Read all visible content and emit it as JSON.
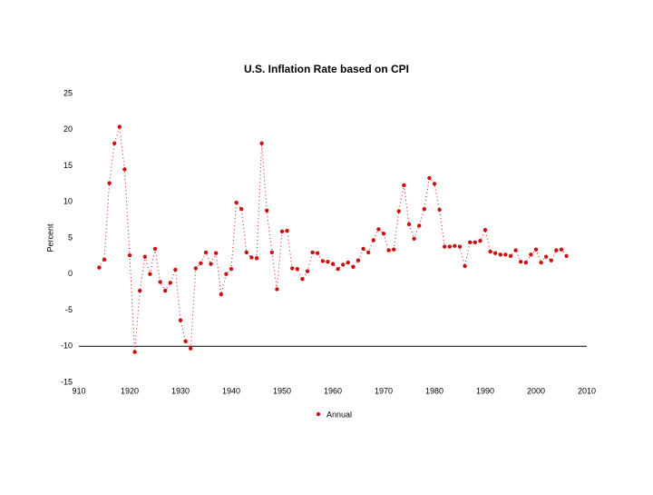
{
  "chart_data": {
    "type": "line",
    "title": "U.S. Inflation Rate based on CPI",
    "y_label": "Percent",
    "x": [
      1914,
      1915,
      1916,
      1917,
      1918,
      1919,
      1920,
      1921,
      1922,
      1923,
      1924,
      1925,
      1926,
      1927,
      1928,
      1929,
      1930,
      1931,
      1932,
      1933,
      1934,
      1935,
      1936,
      1937,
      1938,
      1939,
      1940,
      1941,
      1942,
      1943,
      1944,
      1945,
      1946,
      1947,
      1948,
      1949,
      1950,
      1951,
      1952,
      1953,
      1954,
      1955,
      1956,
      1957,
      1958,
      1959,
      1960,
      1961,
      1962,
      1963,
      1964,
      1965,
      1966,
      1967,
      1968,
      1969,
      1970,
      1971,
      1972,
      1973,
      1974,
      1975,
      1976,
      1977,
      1978,
      1979,
      1980,
      1981,
      1982,
      1983,
      1984,
      1985,
      1986,
      1987,
      1988,
      1989,
      1990,
      1991,
      1992,
      1993,
      1994,
      1995,
      1996,
      1997,
      1998,
      1999,
      2000,
      2001,
      2002,
      2003,
      2004,
      2005,
      2006
    ],
    "series": [
      {
        "name": "Annual",
        "color": "#cc1111",
        "values": [
          0.9,
          2.0,
          12.6,
          18.1,
          20.4,
          14.5,
          2.6,
          -10.8,
          -2.3,
          2.4,
          0,
          3.5,
          -1.1,
          -2.3,
          -1.2,
          0.6,
          -6.4,
          -9.3,
          -10.3,
          0.8,
          1.5,
          3.0,
          1.4,
          2.9,
          -2.8,
          0,
          0.7,
          9.9,
          9.0,
          3.0,
          2.3,
          2.2,
          18.1,
          8.8,
          3.0,
          -2.1,
          5.9,
          6.0,
          0.8,
          0.7,
          -0.7,
          0.4,
          3.0,
          2.9,
          1.8,
          1.7,
          1.4,
          0.7,
          1.3,
          1.6,
          1.0,
          1.9,
          3.5,
          3.0,
          4.7,
          6.2,
          5.6,
          3.3,
          3.4,
          8.7,
          12.3,
          6.9,
          4.9,
          6.7,
          9.0,
          13.3,
          12.5,
          8.9,
          3.8,
          3.8,
          3.9,
          3.8,
          1.1,
          4.4,
          4.4,
          4.6,
          6.1,
          3.1,
          2.9,
          2.7,
          2.7,
          2.5,
          3.3,
          1.7,
          1.6,
          2.7,
          3.4,
          1.6,
          2.4,
          1.9,
          3.3,
          3.4,
          2.5
        ]
      }
    ],
    "xlim": [
      1910,
      2010
    ],
    "xticks": [
      {
        "value": 1910,
        "label": "910"
      },
      1920,
      1930,
      1940,
      1950,
      1960,
      1970,
      1980,
      1990,
      2000,
      2010
    ],
    "ylim": [
      -15,
      25
    ],
    "yticks": [
      -15,
      -10,
      -5,
      0,
      5,
      10,
      15,
      20,
      25
    ],
    "x_axis_at": -10,
    "legend": "bottom"
  }
}
